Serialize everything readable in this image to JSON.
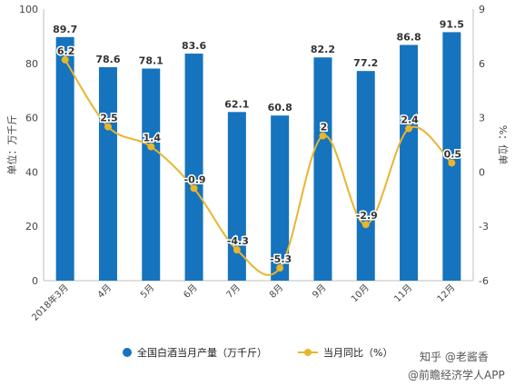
{
  "chart_data": {
    "type": "bar",
    "categories": [
      "2018年3月",
      "4月",
      "5月",
      "6月",
      "7月",
      "8月",
      "9月",
      "10月",
      "11月",
      "12月"
    ],
    "series": [
      {
        "name": "全国白酒当月产量（万千斤）",
        "type": "bar",
        "axis": "left",
        "values": [
          89.7,
          78.6,
          78.1,
          83.6,
          62.1,
          60.8,
          82.2,
          77.2,
          86.8,
          91.5
        ],
        "color": "#1673BD"
      },
      {
        "name": "当月同比（%）",
        "type": "line",
        "axis": "right",
        "values": [
          6.2,
          2.5,
          1.4,
          -0.9,
          -4.3,
          -5.3,
          2,
          -2.9,
          2.4,
          0.5
        ],
        "color": "#E8B52E"
      }
    ],
    "ylabel_left": "单位：万千斤",
    "ylabel_right": "%：位单",
    "ylim_left": [
      0,
      100
    ],
    "yticks_left": [
      "0",
      "20",
      "40",
      "60",
      "80",
      "100"
    ],
    "ylim_right": [
      -6,
      9
    ],
    "yticks_right": [
      "-6",
      "-3",
      "0",
      "3",
      "6",
      "9"
    ],
    "grid": false,
    "legend_position": "bottom"
  },
  "watermark": {
    "line1": "知乎 @老酱香",
    "line2": "@前瞻经济学人APP"
  }
}
